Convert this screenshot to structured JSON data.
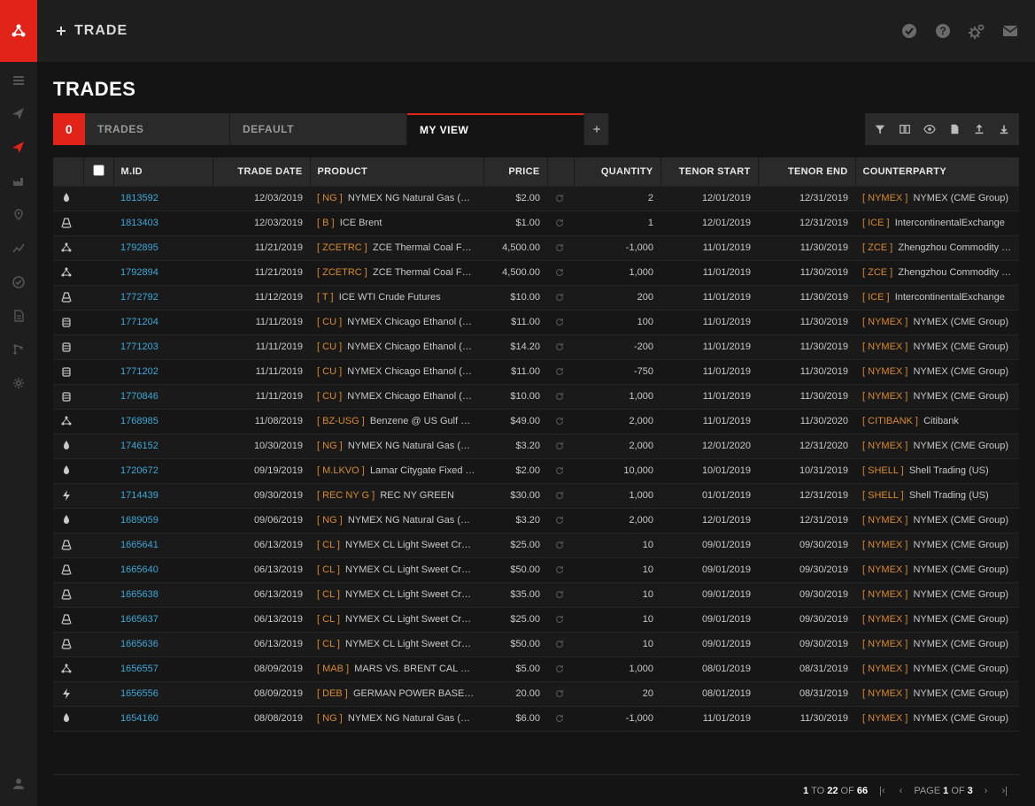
{
  "header": {
    "trade_button": "TRADE"
  },
  "page_title": "TRADES",
  "tabs": {
    "count_badge": "0",
    "trades_label": "TRADES",
    "default_label": "DEFAULT",
    "myview_label": "MY VIEW"
  },
  "columns": {
    "mid": "M.ID",
    "trade_date": "TRADE DATE",
    "product": "PRODUCT",
    "price": "PRICE",
    "quantity": "QUANTITY",
    "tenor_start": "TENOR START",
    "tenor_end": "TENOR END",
    "counterparty": "COUNTERPARTY"
  },
  "rows": [
    {
      "icon": "flame",
      "mid": "1813592",
      "date": "12/03/2019",
      "tag": "NG",
      "product": "NYMEX NG Natural Gas (He...",
      "price": "$2.00",
      "qty": "2",
      "ts": "12/01/2019",
      "te": "12/31/2019",
      "cptag": "NYMEX",
      "cp": "NYMEX (CME Group)"
    },
    {
      "icon": "rig",
      "mid": "1813403",
      "date": "12/03/2019",
      "tag": "B",
      "product": "ICE Brent",
      "price": "$1.00",
      "qty": "1",
      "ts": "12/01/2019",
      "te": "12/31/2019",
      "cptag": "ICE",
      "cp": "IntercontinentalExchange"
    },
    {
      "icon": "nodes",
      "mid": "1792895",
      "date": "11/21/2019",
      "tag": "ZCETRC",
      "product": "ZCE Thermal Coal Futu...",
      "price": "4,500.00",
      "qty": "-1,000",
      "ts": "11/01/2019",
      "te": "11/30/2019",
      "cptag": "ZCE",
      "cp": "Zhengzhou Commodity Exc..."
    },
    {
      "icon": "nodes",
      "mid": "1792894",
      "date": "11/21/2019",
      "tag": "ZCETRC",
      "product": "ZCE Thermal Coal Futu...",
      "price": "4,500.00",
      "qty": "1,000",
      "ts": "11/01/2019",
      "te": "11/30/2019",
      "cptag": "ZCE",
      "cp": "Zhengzhou Commodity Exc..."
    },
    {
      "icon": "rig",
      "mid": "1772792",
      "date": "11/12/2019",
      "tag": "T",
      "product": "ICE WTI Crude Futures",
      "price": "$10.00",
      "qty": "200",
      "ts": "11/01/2019",
      "te": "11/30/2019",
      "cptag": "ICE",
      "cp": "IntercontinentalExchange"
    },
    {
      "icon": "barrel",
      "mid": "1771204",
      "date": "11/11/2019",
      "tag": "CU",
      "product": "NYMEX Chicago Ethanol (Pl...",
      "price": "$11.00",
      "qty": "100",
      "ts": "11/01/2019",
      "te": "11/30/2019",
      "cptag": "NYMEX",
      "cp": "NYMEX (CME Group)"
    },
    {
      "icon": "barrel",
      "mid": "1771203",
      "date": "11/11/2019",
      "tag": "CU",
      "product": "NYMEX Chicago Ethanol (Pl...",
      "price": "$14.20",
      "qty": "-200",
      "ts": "11/01/2019",
      "te": "11/30/2019",
      "cptag": "NYMEX",
      "cp": "NYMEX (CME Group)"
    },
    {
      "icon": "barrel",
      "mid": "1771202",
      "date": "11/11/2019",
      "tag": "CU",
      "product": "NYMEX Chicago Ethanol (Pl...",
      "price": "$11.00",
      "qty": "-750",
      "ts": "11/01/2019",
      "te": "11/30/2019",
      "cptag": "NYMEX",
      "cp": "NYMEX (CME Group)"
    },
    {
      "icon": "barrel",
      "mid": "1770846",
      "date": "11/11/2019",
      "tag": "CU",
      "product": "NYMEX Chicago Ethanol (Pl...",
      "price": "$10.00",
      "qty": "1,000",
      "ts": "11/01/2019",
      "te": "11/30/2019",
      "cptag": "NYMEX",
      "cp": "NYMEX (CME Group)"
    },
    {
      "icon": "nodes",
      "mid": "1768985",
      "date": "11/08/2019",
      "tag": "BZ-USG",
      "product": "Benzene @ US Gulf Co...",
      "price": "$49.00",
      "qty": "2,000",
      "ts": "11/01/2019",
      "te": "11/30/2020",
      "cptag": "CITIBANK",
      "cp": "Citibank"
    },
    {
      "icon": "flame",
      "mid": "1746152",
      "date": "10/30/2019",
      "tag": "NG",
      "product": "NYMEX NG Natural Gas (He...",
      "price": "$3.20",
      "qty": "2,000",
      "ts": "12/01/2020",
      "te": "12/31/2020",
      "cptag": "NYMEX",
      "cp": "NYMEX (CME Group)"
    },
    {
      "icon": "flame",
      "mid": "1720672",
      "date": "09/19/2019",
      "tag": "M.LKVO",
      "product": "Lamar Citygate Fixed Pr...",
      "price": "$2.00",
      "qty": "10,000",
      "ts": "10/01/2019",
      "te": "10/31/2019",
      "cptag": "SHELL",
      "cp": "Shell Trading (US)"
    },
    {
      "icon": "bolt",
      "mid": "1714439",
      "date": "09/30/2019",
      "tag": "REC NY G",
      "product": "REC NY GREEN",
      "price": "$30.00",
      "qty": "1,000",
      "ts": "01/01/2019",
      "te": "12/31/2019",
      "cptag": "SHELL",
      "cp": "Shell Trading (US)"
    },
    {
      "icon": "flame",
      "mid": "1689059",
      "date": "09/06/2019",
      "tag": "NG",
      "product": "NYMEX NG Natural Gas (He...",
      "price": "$3.20",
      "qty": "2,000",
      "ts": "12/01/2019",
      "te": "12/31/2019",
      "cptag": "NYMEX",
      "cp": "NYMEX (CME Group)"
    },
    {
      "icon": "rig",
      "mid": "1665641",
      "date": "06/13/2019",
      "tag": "CL",
      "product": "NYMEX CL Light Sweet Crud...",
      "price": "$25.00",
      "qty": "10",
      "ts": "09/01/2019",
      "te": "09/30/2019",
      "cptag": "NYMEX",
      "cp": "NYMEX (CME Group)"
    },
    {
      "icon": "rig",
      "mid": "1665640",
      "date": "06/13/2019",
      "tag": "CL",
      "product": "NYMEX CL Light Sweet Crud...",
      "price": "$50.00",
      "qty": "10",
      "ts": "09/01/2019",
      "te": "09/30/2019",
      "cptag": "NYMEX",
      "cp": "NYMEX (CME Group)"
    },
    {
      "icon": "rig",
      "mid": "1665638",
      "date": "06/13/2019",
      "tag": "CL",
      "product": "NYMEX CL Light Sweet Crud...",
      "price": "$35.00",
      "qty": "10",
      "ts": "09/01/2019",
      "te": "09/30/2019",
      "cptag": "NYMEX",
      "cp": "NYMEX (CME Group)"
    },
    {
      "icon": "rig",
      "mid": "1665637",
      "date": "06/13/2019",
      "tag": "CL",
      "product": "NYMEX CL Light Sweet Crud...",
      "price": "$25.00",
      "qty": "10",
      "ts": "09/01/2019",
      "te": "09/30/2019",
      "cptag": "NYMEX",
      "cp": "NYMEX (CME Group)"
    },
    {
      "icon": "rig",
      "mid": "1665636",
      "date": "06/13/2019",
      "tag": "CL",
      "product": "NYMEX CL Light Sweet Crud...",
      "price": "$50.00",
      "qty": "10",
      "ts": "09/01/2019",
      "te": "09/30/2019",
      "cptag": "NYMEX",
      "cp": "NYMEX (CME Group)"
    },
    {
      "icon": "nodes",
      "mid": "1656557",
      "date": "08/09/2019",
      "tag": "MAB",
      "product": "MARS VS. BRENT CAL MO...",
      "price": "$5.00",
      "qty": "1,000",
      "ts": "08/01/2019",
      "te": "08/31/2019",
      "cptag": "NYMEX",
      "cp": "NYMEX (CME Group)"
    },
    {
      "icon": "bolt",
      "mid": "1656556",
      "date": "08/09/2019",
      "tag": "DEB",
      "product": "GERMAN POWER BASELO...",
      "price": "20.00",
      "qty": "20",
      "ts": "08/01/2019",
      "te": "08/31/2019",
      "cptag": "NYMEX",
      "cp": "NYMEX (CME Group)"
    },
    {
      "icon": "flame",
      "mid": "1654160",
      "date": "08/08/2019",
      "tag": "NG",
      "product": "NYMEX NG Natural Gas (He...",
      "price": "$6.00",
      "qty": "-1,000",
      "ts": "11/01/2019",
      "te": "11/30/2019",
      "cptag": "NYMEX",
      "cp": "NYMEX (CME Group)"
    }
  ],
  "pager": {
    "from": "1",
    "to": "22",
    "total": "66",
    "page_label": "PAGE",
    "page": "1",
    "pages": "3",
    "to_word": "TO",
    "of_word": "OF"
  },
  "colors": {
    "accent": "#e2231a",
    "link": "#3da8d8",
    "tag": "#d88a2e",
    "bg": "#141414",
    "panel": "#1e1e1e",
    "row_odd": "#1a1a1a",
    "row_even": "#161616",
    "header_row": "#2a2a2a"
  }
}
